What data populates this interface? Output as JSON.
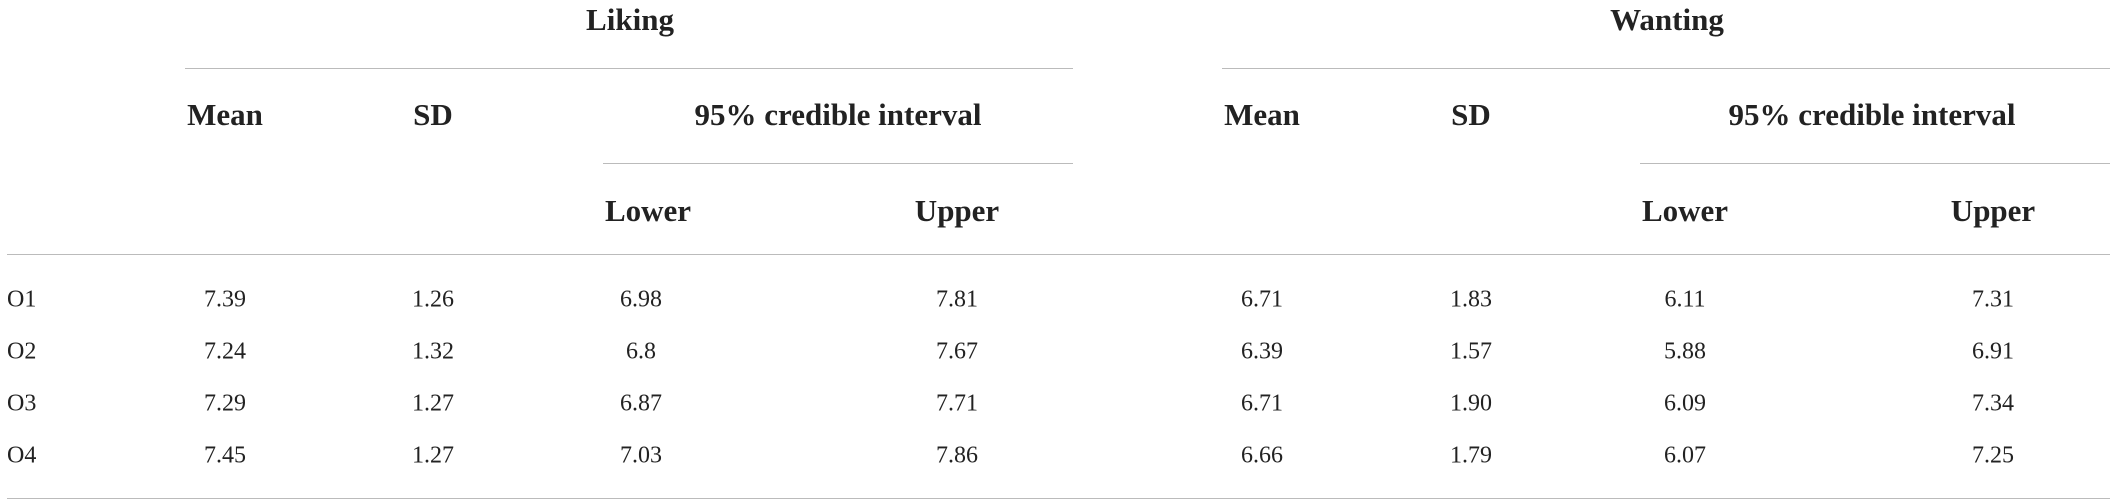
{
  "table": {
    "groups": [
      "Liking",
      "Wanting"
    ],
    "columns": [
      "Mean",
      "SD",
      "95% credible interval"
    ],
    "subcolumns": [
      "Lower",
      "Upper"
    ],
    "rows": [
      [
        "O1",
        "7.39",
        "1.26",
        "6.98",
        "7.81",
        "6.71",
        "1.83",
        "6.11",
        "7.31"
      ],
      [
        "O2",
        "7.24",
        "1.32",
        "6.8",
        "7.67",
        "6.39",
        "1.57",
        "5.88",
        "6.91"
      ],
      [
        "O3",
        "7.29",
        "1.27",
        "6.87",
        "7.71",
        "6.71",
        "1.90",
        "6.09",
        "7.34"
      ],
      [
        "O4",
        "7.45",
        "1.27",
        "7.03",
        "7.86",
        "6.66",
        "1.79",
        "6.07",
        "7.25"
      ]
    ]
  }
}
